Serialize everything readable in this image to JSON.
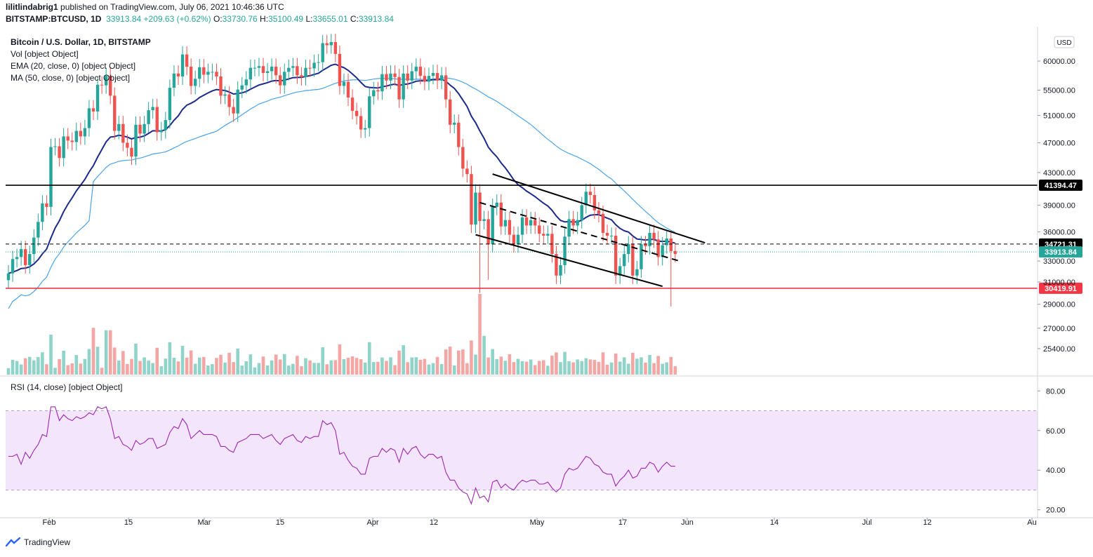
{
  "header": {
    "author": "lilitlindabrig1",
    "published": "published on TradingView.com, July 06, 2021 10:46:36 UTC",
    "symbol": "BITSTAMP:BTCUSD, 1D",
    "last": "33913.84",
    "change": "+209.63 (+0.62%)",
    "o_label": "O:",
    "o": "33730.76",
    "h_label": "H:",
    "h": "35100.49",
    "l_label": "L:",
    "l": "33655.01",
    "c_label": "C:",
    "c": "33913.84"
  },
  "legend": {
    "title": "Bitcoin / U.S. Dollar, 1D, BITSTAMP",
    "vol": "Vol [object Object]",
    "ema": "EMA (20, close, 0) [object Object]",
    "ma": "MA (50, close, 0) [object Object]",
    "rsi": "RSI (14, close) [object Object]"
  },
  "currency_badge": "USD",
  "footer": {
    "brand": "TradingView"
  },
  "colors": {
    "up": "#26a69a",
    "down": "#ef5350",
    "vol_up": "#8fd3c9",
    "vol_down": "#f4a6a4",
    "ema": "#1b2a8c",
    "ma": "#4aa3e8",
    "rsi": "#9c27b0",
    "rsi_band": "#f3e5fc",
    "support": "#f23645",
    "resistance": "#000000"
  },
  "chart_data": {
    "type": "candlestick",
    "price_axis": {
      "ticks": [
        "60000.00",
        "55000.00",
        "51000.00",
        "47000.00",
        "43000.00",
        "39000.00",
        "36000.00",
        "33000.00",
        "31000.00",
        "29000.00",
        "27000.00",
        "25400.00"
      ]
    },
    "time_axis": {
      "ticks": [
        "Feb",
        "15",
        "Mar",
        "15",
        "Apr",
        "12",
        "May",
        "17",
        "Jun",
        "14",
        "Jul",
        "12",
        "Au"
      ]
    },
    "levels": [
      {
        "label": "41394.47",
        "value": 41394.47,
        "style": "solid-black"
      },
      {
        "label": "34721.31",
        "value": 34721.31,
        "style": "dashed-black"
      },
      {
        "label": "33913.84",
        "value": 33913.84,
        "style": "last-price"
      },
      {
        "label": "30419.91",
        "value": 30419.91,
        "style": "solid-red"
      }
    ],
    "rsi_axis": {
      "ticks": [
        "80.00",
        "60.00",
        "40.00",
        "20.00"
      ],
      "band": [
        30,
        70
      ]
    },
    "close": [
      31800,
      33200,
      33400,
      34200,
      32600,
      33700,
      35400,
      37100,
      39200,
      38800,
      46400,
      46500,
      44900,
      47900,
      47300,
      47100,
      48700,
      47900,
      49100,
      52100,
      51600,
      55900,
      55800,
      57400,
      54100,
      48700,
      49700,
      47000,
      46300,
      45100,
      49600,
      48300,
      49700,
      51800,
      52300,
      48500,
      48800,
      50300,
      55400,
      57800,
      57300,
      61200,
      59000,
      55700,
      56900,
      58900,
      57600,
      58100,
      58100,
      57300,
      54100,
      54300,
      52300,
      51300,
      55100,
      55800,
      56800,
      58800,
      58800,
      59100,
      57900,
      58200,
      59000,
      57500,
      55800,
      58100,
      58800,
      59100,
      57500,
      57200,
      58800,
      58700,
      59700,
      59800,
      63300,
      62900,
      63500,
      61300,
      55700,
      56400,
      53800,
      51700,
      50900,
      48900,
      49100,
      54000,
      55000,
      54800,
      57700,
      56600,
      57800,
      57200,
      53500,
      57800,
      56600,
      58200,
      59000,
      57400,
      56400,
      57400,
      57900,
      56600,
      57500,
      53500,
      49600,
      49900,
      46400,
      43500,
      42800,
      36800,
      40500,
      37200,
      37400,
      34700,
      38800,
      39300,
      36600,
      37300,
      35700,
      34700,
      35700,
      37600,
      36700,
      37300,
      36700,
      35800,
      35600,
      35800,
      33700,
      31600,
      32600,
      35500,
      37400,
      36700,
      37300,
      39000,
      40600,
      40200,
      38400,
      38000,
      35900,
      35600,
      35600,
      31600,
      32500,
      33700,
      34700,
      31600,
      32200,
      34700,
      34500,
      35900,
      35200,
      33400,
      34600,
      35300,
      34000,
      33700
    ],
    "rsi": [
      47,
      47,
      48,
      43,
      49,
      46,
      50,
      53,
      58,
      57,
      72,
      72,
      65,
      68,
      66,
      65,
      67,
      66,
      67,
      69,
      68,
      72,
      71,
      72,
      66,
      56,
      57,
      53,
      52,
      50,
      55,
      53,
      54,
      56,
      56,
      51,
      52,
      53,
      59,
      62,
      61,
      66,
      63,
      56,
      58,
      60,
      58,
      58,
      58,
      57,
      52,
      52,
      50,
      49,
      54,
      55,
      56,
      58,
      58,
      58,
      56,
      57,
      58,
      55,
      53,
      56,
      57,
      58,
      55,
      54,
      57,
      56,
      57,
      57,
      65,
      63,
      64,
      60,
      48,
      49,
      45,
      42,
      41,
      38,
      38,
      46,
      47,
      47,
      51,
      49,
      51,
      50,
      44,
      51,
      48,
      51,
      52,
      48,
      46,
      48,
      48,
      46,
      47,
      39,
      35,
      35,
      31,
      29,
      28,
      23,
      31,
      26,
      27,
      24,
      34,
      35,
      31,
      33,
      31,
      30,
      33,
      35,
      34,
      35,
      35,
      33,
      33,
      34,
      31,
      29,
      31,
      38,
      41,
      40,
      41,
      44,
      47,
      46,
      43,
      42,
      39,
      38,
      38,
      32,
      35,
      37,
      40,
      36,
      37,
      41,
      41,
      44,
      43,
      39,
      42,
      44,
      42,
      42
    ]
  }
}
